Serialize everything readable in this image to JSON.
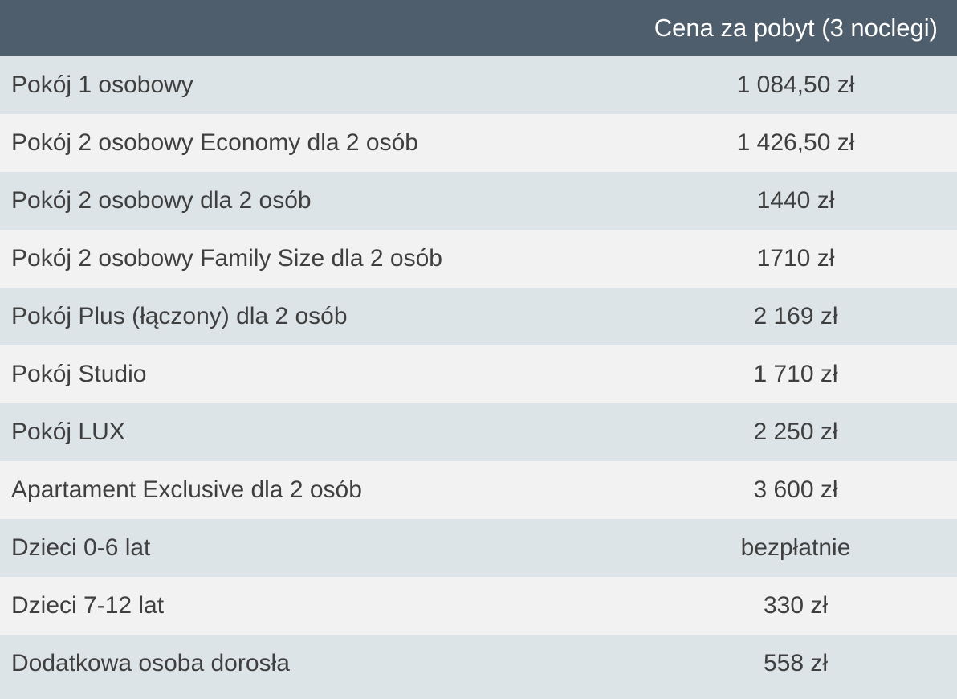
{
  "table": {
    "header": {
      "name_col": "",
      "price_col": "Cena za pobyt (3 noclegi)"
    },
    "rows": [
      {
        "name": "Pokój 1 osobowy",
        "price": "1 084,50 zł"
      },
      {
        "name": "Pokój 2 osobowy Economy dla 2 osób",
        "price": "1 426,50 zł"
      },
      {
        "name": "Pokój 2 osobowy dla 2 osób",
        "price": "1440 zł"
      },
      {
        "name": "Pokój 2 osobowy Family Size dla 2 osób",
        "price": "1710 zł"
      },
      {
        "name": "Pokój Plus (łączony) dla 2 osób",
        "price": "2 169 zł"
      },
      {
        "name": "Pokój Studio",
        "price": "1 710 zł"
      },
      {
        "name": "Pokój LUX",
        "price": "2 250 zł"
      },
      {
        "name": "Apartament Exclusive dla 2 osób",
        "price": "3 600 zł"
      },
      {
        "name": "Dzieci 0-6 lat",
        "price": "bezpłatnie"
      },
      {
        "name": "Dzieci 7-12 lat",
        "price": "330 zł"
      },
      {
        "name": "Dodatkowa osoba dorosła",
        "price": "558 zł"
      }
    ]
  },
  "colors": {
    "header_bg": "#4f5e6c",
    "header_text": "#ffffff",
    "row_odd_bg": "#dde4e8",
    "row_even_bg": "#f2f2f2",
    "body_text": "#3f3f3f"
  }
}
